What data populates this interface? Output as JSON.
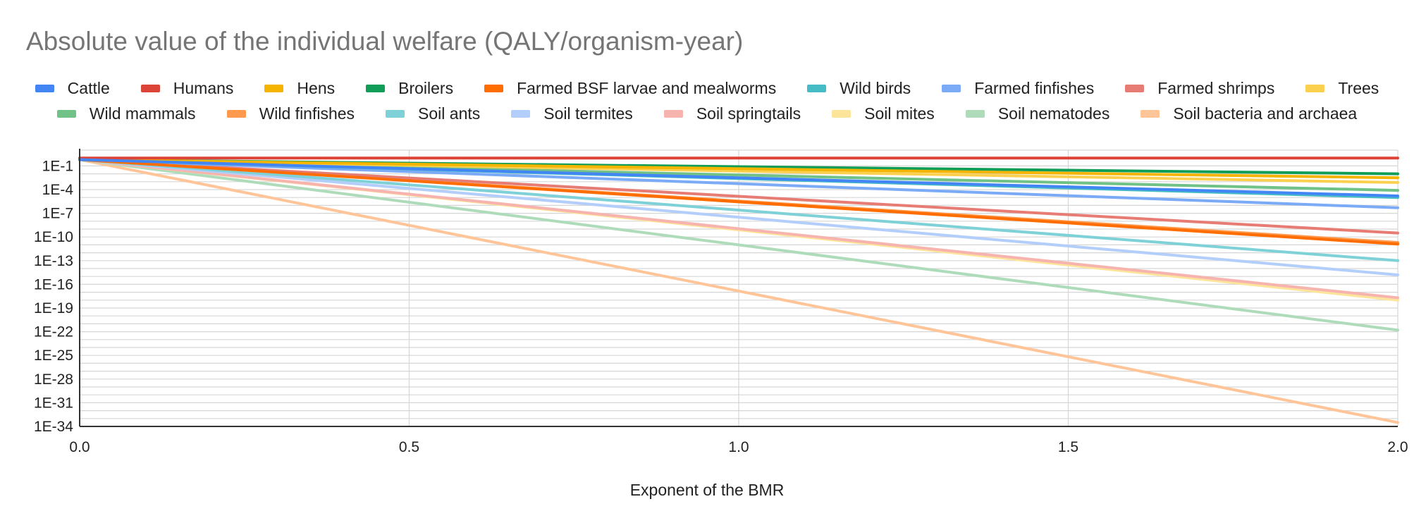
{
  "chart_data": {
    "type": "line",
    "title": "Absolute value of the individual welfare (QALY/organism-year)",
    "xlabel": "Exponent of the BMR",
    "ylabel": "",
    "y_scale": "log",
    "xlim": [
      0,
      2
    ],
    "ylim_log10": [
      -34,
      1
    ],
    "x_ticks": [
      "0.0",
      "0.5",
      "1.0",
      "1.5",
      "2.0"
    ],
    "y_ticks": [
      "1E-1",
      "1E-4",
      "1E-7",
      "1E-10",
      "1E-13",
      "1E-16",
      "1E-19",
      "1E-22",
      "1E-25",
      "1E-28",
      "1E-31",
      "1E-34"
    ],
    "legend_rows": [
      [
        "Cattle",
        "Humans",
        "Hens",
        "Broilers",
        "Farmed BSF larvae and mealworms",
        "Wild birds",
        "Farmed finfishes",
        "Farmed shrimps",
        "Trees"
      ],
      [
        "Wild mammals",
        "Wild finfishes",
        "Soil ants",
        "Soil termites",
        "Soil springtails",
        "Soil mites",
        "Soil nematodes",
        "Soil bacteria and archaea"
      ]
    ],
    "x": [
      0,
      2
    ],
    "series": [
      {
        "name": "Cattle",
        "color": "#4285f4",
        "log10_values": [
          -0.2,
          -4.8
        ]
      },
      {
        "name": "Humans",
        "color": "#db4437",
        "log10_values": [
          0.0,
          0.0
        ]
      },
      {
        "name": "Hens",
        "color": "#f4b400",
        "log10_values": [
          -0.2,
          -2.5
        ]
      },
      {
        "name": "Broilers",
        "color": "#0f9d58",
        "log10_values": [
          -0.2,
          -2.0
        ]
      },
      {
        "name": "Farmed BSF larvae and mealworms",
        "color": "#ff6d01",
        "log10_values": [
          -0.2,
          -10.9
        ]
      },
      {
        "name": "Wild birds",
        "color": "#46bdc6",
        "log10_values": [
          -0.2,
          -5.0
        ]
      },
      {
        "name": "Farmed finfishes",
        "color": "#7baaf7",
        "log10_values": [
          -0.2,
          -6.3
        ]
      },
      {
        "name": "Farmed shrimps",
        "color": "#e67c73",
        "log10_values": [
          -0.2,
          -9.5
        ]
      },
      {
        "name": "Trees",
        "color": "#fcd04f",
        "log10_values": [
          -0.2,
          -3.1
        ]
      },
      {
        "name": "Wild mammals",
        "color": "#71c287",
        "log10_values": [
          -0.2,
          -4.1
        ]
      },
      {
        "name": "Wild finfishes",
        "color": "#ff994d",
        "log10_values": [
          -0.2,
          -10.7
        ]
      },
      {
        "name": "Soil ants",
        "color": "#7ed1d7",
        "log10_values": [
          -0.2,
          -13.0
        ]
      },
      {
        "name": "Soil termites",
        "color": "#b3cefb",
        "log10_values": [
          -0.2,
          -14.8
        ]
      },
      {
        "name": "Soil springtails",
        "color": "#f7b4ae",
        "log10_values": [
          -0.2,
          -17.7
        ]
      },
      {
        "name": "Soil mites",
        "color": "#fde49b",
        "log10_values": [
          -0.2,
          -18.0
        ]
      },
      {
        "name": "Soil nematodes",
        "color": "#aedcba",
        "log10_values": [
          -0.2,
          -21.8
        ]
      },
      {
        "name": "Soil bacteria and archaea",
        "color": "#ffc599",
        "log10_values": [
          -0.2,
          -33.5
        ]
      }
    ]
  }
}
